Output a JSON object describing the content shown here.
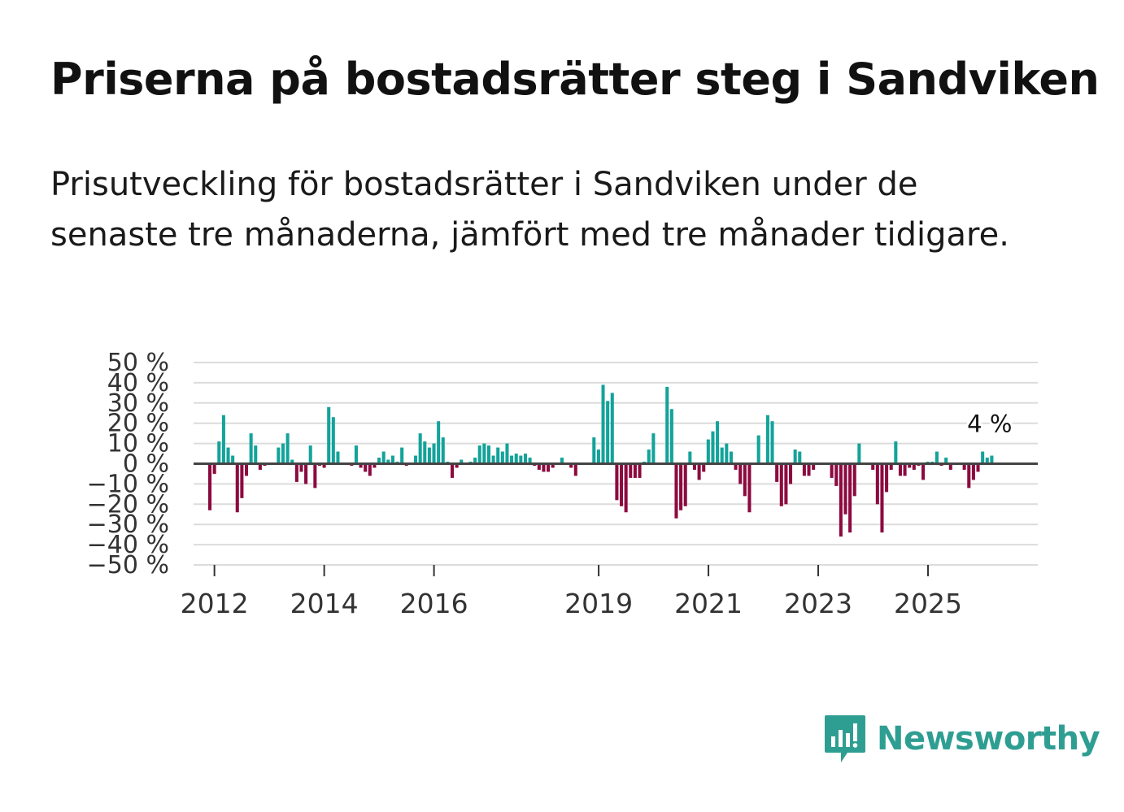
{
  "title": "Priserna på bostadsrätter steg i Sandviken",
  "subtitle": "Prisutveckling för bostadsrätter i Sandviken under de senaste tre månaderna, jämfört med tre månader tidigare.",
  "brand": {
    "name": "Newsworthy",
    "icon": "newsworthy-logo-icon",
    "color": "#2f9e92"
  },
  "chart_data": {
    "type": "bar",
    "title": "Priserna på bostadsrätter steg i Sandviken",
    "xlabel": "",
    "ylabel": "",
    "ylim": [
      -50,
      50
    ],
    "xlim": [
      2011.62,
      2027.0
    ],
    "y_ticks": [
      "50 %",
      "40 %",
      "30 %",
      "20 %",
      "10 %",
      "0 %",
      "−10 %",
      "−20 %",
      "−30 %",
      "−40 %",
      "−50 %"
    ],
    "y_tick_values": [
      50,
      40,
      30,
      20,
      10,
      0,
      -10,
      -20,
      -30,
      -40,
      -50
    ],
    "x_ticks": [
      "2012",
      "2014",
      "2016",
      "2019",
      "2021",
      "2023",
      "2025"
    ],
    "x_tick_values": [
      2012,
      2014,
      2016,
      2019,
      2021,
      2023,
      2025
    ],
    "positive_color": "#13a39a",
    "negative_color": "#8c0a3f",
    "grid": true,
    "last_value_label": "4 %",
    "series": [
      {
        "name": "Prisutveckling",
        "x_start": 2011.917,
        "x_step": 0.0833,
        "values": [
          -23,
          -5,
          11,
          24,
          8,
          4,
          -24,
          -17,
          -6,
          15,
          9,
          -3,
          -1,
          0,
          0,
          8,
          10,
          15,
          2,
          -9,
          -4,
          -10,
          9,
          -12,
          -1,
          -2,
          28,
          23,
          6,
          0,
          0,
          -1,
          9,
          -2,
          -4,
          -6,
          -2,
          3,
          6,
          2,
          4,
          1,
          8,
          -1,
          0,
          4,
          15,
          11,
          8,
          10,
          21,
          13,
          1,
          -7,
          -2,
          2,
          0,
          1,
          3,
          9,
          10,
          9,
          4,
          8,
          6,
          10,
          4,
          5,
          4,
          5,
          3,
          -1,
          -3,
          -4,
          -4,
          -2,
          0,
          3,
          0,
          -2,
          -6,
          0,
          0,
          0,
          13,
          7,
          39,
          31,
          35,
          -18,
          -21,
          -24,
          -7,
          -7,
          -7,
          1,
          7,
          15,
          0,
          0,
          38,
          27,
          -27,
          -23,
          -21,
          6,
          -3,
          -8,
          -4,
          12,
          16,
          21,
          8,
          10,
          6,
          -3,
          -10,
          -16,
          -24,
          0,
          14,
          0,
          24,
          21,
          -9,
          -21,
          -20,
          -10,
          7,
          6,
          -6,
          -6,
          -3,
          0,
          0,
          0,
          -7,
          -11,
          -36,
          -25,
          -34,
          -16,
          10,
          0,
          0,
          -3,
          -20,
          -34,
          -14,
          -3,
          11,
          -6,
          -6,
          -2,
          -3,
          -1,
          -8,
          1,
          1,
          6,
          -1,
          3,
          -3,
          0,
          0,
          -3,
          -12,
          -8,
          -4,
          6,
          3,
          4
        ]
      }
    ]
  }
}
